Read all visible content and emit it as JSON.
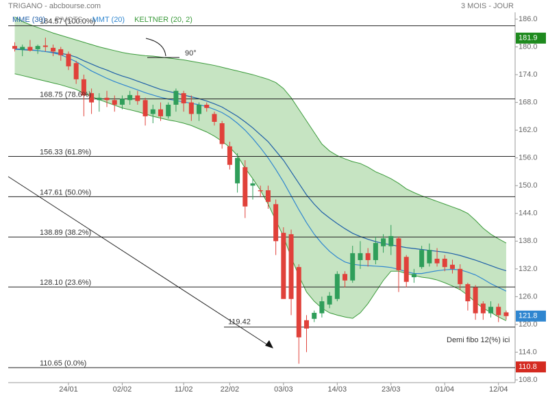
{
  "chart_data": {
    "type": "candlestick",
    "title": "TRIGANO - abcbourse.com",
    "subtitle": "3 MOIS - JOUR",
    "categories": [
      null,
      null,
      null,
      null,
      null,
      null,
      null,
      "24/01",
      null,
      null,
      null,
      null,
      null,
      null,
      "02/02",
      null,
      null,
      null,
      null,
      null,
      null,
      null,
      "11/02",
      null,
      null,
      null,
      null,
      null,
      "22/02",
      null,
      null,
      null,
      null,
      null,
      null,
      "03/03",
      null,
      null,
      null,
      null,
      null,
      null,
      "14/03",
      null,
      null,
      null,
      null,
      null,
      null,
      "23/03",
      null,
      null,
      null,
      null,
      null,
      null,
      "01/04",
      null,
      null,
      null,
      null,
      null,
      null,
      "12/04",
      null
    ],
    "candles": {
      "up_color": "#2f9e5a",
      "down_color": "#e0413a",
      "open": [
        180.2,
        179.4,
        180.0,
        179.5,
        180.3,
        179.8,
        179.5,
        178.5,
        176.5,
        173.0,
        170.0,
        168.5,
        169.0,
        168.5,
        167.5,
        168.5,
        169.5,
        168.5,
        165.5,
        166.5,
        165.0,
        167.5,
        170.0,
        168.0,
        165.5,
        167.5,
        165.5,
        163.5,
        158.5,
        150.5,
        154.0,
        150.0,
        149.0,
        149.0,
        146.0,
        139.8,
        139.5,
        132.4,
        120.9,
        121.2,
        122.4,
        124.3,
        125.5,
        130.9,
        129.5,
        133.9,
        135.4,
        133.9,
        136.9,
        136.9,
        138.6,
        134.6,
        130.2,
        132.4,
        133.2,
        134.2,
        134.2,
        132.9,
        132.0,
        128.7,
        128.0,
        124.5,
        122.4,
        123.8,
        122.6
      ],
      "high": [
        181.0,
        180.5,
        181.5,
        180.5,
        182.0,
        180.5,
        180.0,
        179.0,
        177.0,
        174.0,
        171.0,
        170.0,
        170.5,
        169.5,
        169.5,
        170.5,
        170.5,
        169.0,
        167.5,
        168.0,
        168.0,
        171.0,
        170.5,
        169.5,
        168.0,
        168.0,
        166.0,
        164.0,
        159.5,
        157.0,
        155.5,
        151.5,
        150.0,
        150.0,
        147.0,
        141.0,
        140.5,
        133.0,
        122.0,
        123.0,
        126.0,
        127.0,
        131.5,
        131.5,
        137.0,
        138.0,
        136.5,
        139.0,
        139.5,
        141.5,
        139.0,
        135.0,
        132.0,
        137.0,
        137.5,
        136.5,
        135.0,
        134.0,
        133.0,
        129.0,
        128.5,
        125.0,
        125.0,
        124.5,
        123.0
      ],
      "low": [
        179.0,
        178.0,
        179.0,
        178.5,
        179.0,
        178.0,
        177.0,
        175.0,
        172.0,
        165.0,
        165.5,
        166.0,
        167.0,
        166.0,
        166.5,
        167.5,
        167.5,
        163.0,
        163.5,
        164.0,
        164.5,
        166.0,
        166.0,
        164.0,
        164.0,
        166.0,
        163.0,
        158.0,
        153.5,
        148.5,
        143.0,
        147.0,
        147.5,
        145.0,
        135.0,
        126.0,
        122.0,
        111.5,
        114.0,
        120.5,
        121.5,
        123.5,
        125.0,
        128.0,
        129.0,
        132.0,
        132.5,
        133.0,
        135.5,
        135.0,
        127.0,
        128.0,
        129.0,
        132.0,
        132.5,
        132.5,
        131.5,
        131.0,
        127.5,
        123.0,
        121.0,
        121.0,
        121.5,
        120.5,
        121.0
      ],
      "close": [
        179.6,
        180.0,
        179.2,
        180.2,
        180.0,
        179.0,
        178.2,
        175.8,
        173.0,
        169.5,
        168.0,
        169.0,
        168.5,
        167.5,
        168.8,
        169.6,
        168.3,
        165.0,
        166.5,
        165.0,
        167.5,
        170.5,
        167.8,
        165.5,
        167.5,
        166.8,
        163.8,
        159.0,
        154.5,
        156.0,
        145.5,
        150.5,
        148.8,
        146.5,
        138.0,
        125.5,
        125.5,
        117.2,
        119.1,
        122.5,
        125.0,
        126.2,
        130.9,
        129.5,
        135.4,
        135.4,
        133.9,
        137.6,
        138.6,
        139.1,
        131.7,
        129.2,
        130.9,
        136.1,
        136.1,
        133.2,
        132.4,
        132.0,
        128.7,
        125.0,
        122.4,
        122.4,
        123.8,
        122.0,
        121.8
      ]
    },
    "series": [
      {
        "name": "MME (30)",
        "color": "#1f5fa8",
        "values": [
          179.5,
          179.4,
          179.3,
          179.2,
          179.0,
          178.8,
          178.6,
          178.3,
          177.8,
          177.0,
          176.3,
          175.6,
          175.0,
          174.3,
          173.7,
          173.2,
          172.6,
          172.0,
          171.4,
          170.8,
          170.4,
          170.0,
          169.6,
          169.2,
          168.8,
          168.3,
          167.7,
          167.0,
          166.0,
          165.0,
          163.8,
          162.5,
          161.0,
          159.5,
          157.5,
          155.5,
          153.0,
          150.5,
          148.0,
          146.0,
          144.3,
          143.0,
          141.8,
          140.7,
          139.7,
          139.0,
          138.4,
          137.9,
          137.5,
          137.2,
          136.9,
          136.6,
          136.4,
          136.2,
          136.0,
          135.8,
          135.6,
          135.3,
          134.9,
          134.4,
          133.9,
          133.3,
          132.7,
          132.1,
          131.6
        ]
      },
      {
        "name": "PIVOTS",
        "color": "#888888"
      },
      {
        "name": "MMT (20)",
        "color": "#2f86d0",
        "values": [
          179.6,
          179.5,
          179.4,
          179.2,
          179.0,
          178.7,
          178.3,
          177.6,
          176.8,
          175.8,
          174.8,
          174.0,
          173.2,
          172.5,
          171.9,
          171.3,
          170.7,
          170.1,
          169.6,
          169.1,
          168.7,
          168.4,
          168.1,
          167.8,
          167.5,
          167.1,
          166.5,
          165.8,
          164.8,
          163.5,
          162.0,
          160.2,
          158.2,
          156.0,
          153.5,
          150.8,
          147.8,
          144.8,
          142.0,
          139.5,
          137.5,
          135.8,
          134.5,
          133.5,
          133.0,
          132.8,
          132.7,
          132.6,
          132.5,
          132.3,
          131.9,
          131.4,
          131.0,
          131.0,
          131.3,
          131.6,
          131.8,
          131.9,
          131.8,
          131.3,
          130.7,
          129.8,
          128.8,
          128.0,
          127.2
        ]
      },
      {
        "name": "KELTNER (20, 2)",
        "color": "#3a9a3a",
        "upper": [
          186.5,
          185.5,
          184.8,
          184.2,
          183.6,
          183.0,
          182.5,
          182.0,
          181.5,
          181.0,
          180.5,
          180.0,
          179.6,
          179.2,
          178.8,
          178.5,
          178.3,
          178.1,
          178.0,
          177.8,
          177.6,
          177.4,
          177.2,
          176.9,
          176.6,
          176.3,
          176.0,
          175.6,
          175.2,
          174.8,
          174.4,
          174.0,
          173.5,
          173.0,
          172.3,
          171.0,
          169.0,
          166.5,
          164.0,
          161.5,
          159.0,
          157.5,
          156.5,
          155.8,
          155.2,
          154.8,
          154.0,
          153.0,
          152.3,
          151.5,
          150.5,
          149.3,
          148.5,
          147.8,
          147.2,
          146.6,
          146.0,
          145.4,
          144.8,
          144.0,
          142.5,
          140.8,
          139.5,
          138.5,
          137.6
        ],
        "lower": [
          174.2,
          173.8,
          173.4,
          173.0,
          172.6,
          172.2,
          171.8,
          171.3,
          170.8,
          170.0,
          169.3,
          168.6,
          168.0,
          167.4,
          166.8,
          166.4,
          166.0,
          165.5,
          165.0,
          164.6,
          164.2,
          163.9,
          163.5,
          163.0,
          162.3,
          161.6,
          160.7,
          159.6,
          158.3,
          156.5,
          153.8,
          151.5,
          149.0,
          146.0,
          142.5,
          139.0,
          134.5,
          130.5,
          127.0,
          125.0,
          123.5,
          122.5,
          122.0,
          121.6,
          121.3,
          122.5,
          124.5,
          127.0,
          129.5,
          131.5,
          131.5,
          131.0,
          130.6,
          130.2,
          130.0,
          129.6,
          129.0,
          128.3,
          127.5,
          126.3,
          124.8,
          123.5,
          122.6,
          121.6,
          120.8
        ]
      }
    ],
    "levels": [
      {
        "value": 184.57,
        "label": "184.57 (100.0%)"
      },
      {
        "value": 168.75,
        "label": "168.75 (78.6%)"
      },
      {
        "value": 156.33,
        "label": "156.33 (61.8%)"
      },
      {
        "value": 147.61,
        "label": "147.61 (50.0%)"
      },
      {
        "value": 138.89,
        "label": "138.89 (38.2%)"
      },
      {
        "value": 128.1,
        "label": "128.10 (23.6%)"
      },
      {
        "value": 110.65,
        "label": "110.65 (0.0%)"
      }
    ],
    "level_extra": {
      "value": 119.42,
      "label": "119.42"
    },
    "annotations": [
      "90°",
      "Demi fibo 12(%) ici"
    ],
    "badges": [
      {
        "value": 181.9,
        "label": "181.9",
        "color": "#1e8a1e"
      },
      {
        "value": 121.8,
        "label": "121.8",
        "color": "#2f86d0"
      },
      {
        "value": 110.8,
        "label": "110.8",
        "color": "#d42a20"
      }
    ],
    "ylim": [
      108,
      186
    ],
    "yticks": [
      {
        "value": 108,
        "label": "108.0"
      },
      {
        "value": 114,
        "label": "114.0"
      },
      {
        "value": 120,
        "label": "120.0"
      },
      {
        "value": 126,
        "label": "126.0"
      },
      {
        "value": 132,
        "label": "132.0"
      },
      {
        "value": 138,
        "label": "138.0"
      },
      {
        "value": 144,
        "label": "144.0"
      },
      {
        "value": 150,
        "label": "150.0"
      },
      {
        "value": 156,
        "label": "156.0"
      },
      {
        "value": 162,
        "label": "162.0"
      },
      {
        "value": 168,
        "label": "168.0"
      },
      {
        "value": 174,
        "label": "174.0"
      },
      {
        "value": 180,
        "label": "180.0"
      },
      {
        "value": 186,
        "label": "186.0"
      }
    ]
  }
}
